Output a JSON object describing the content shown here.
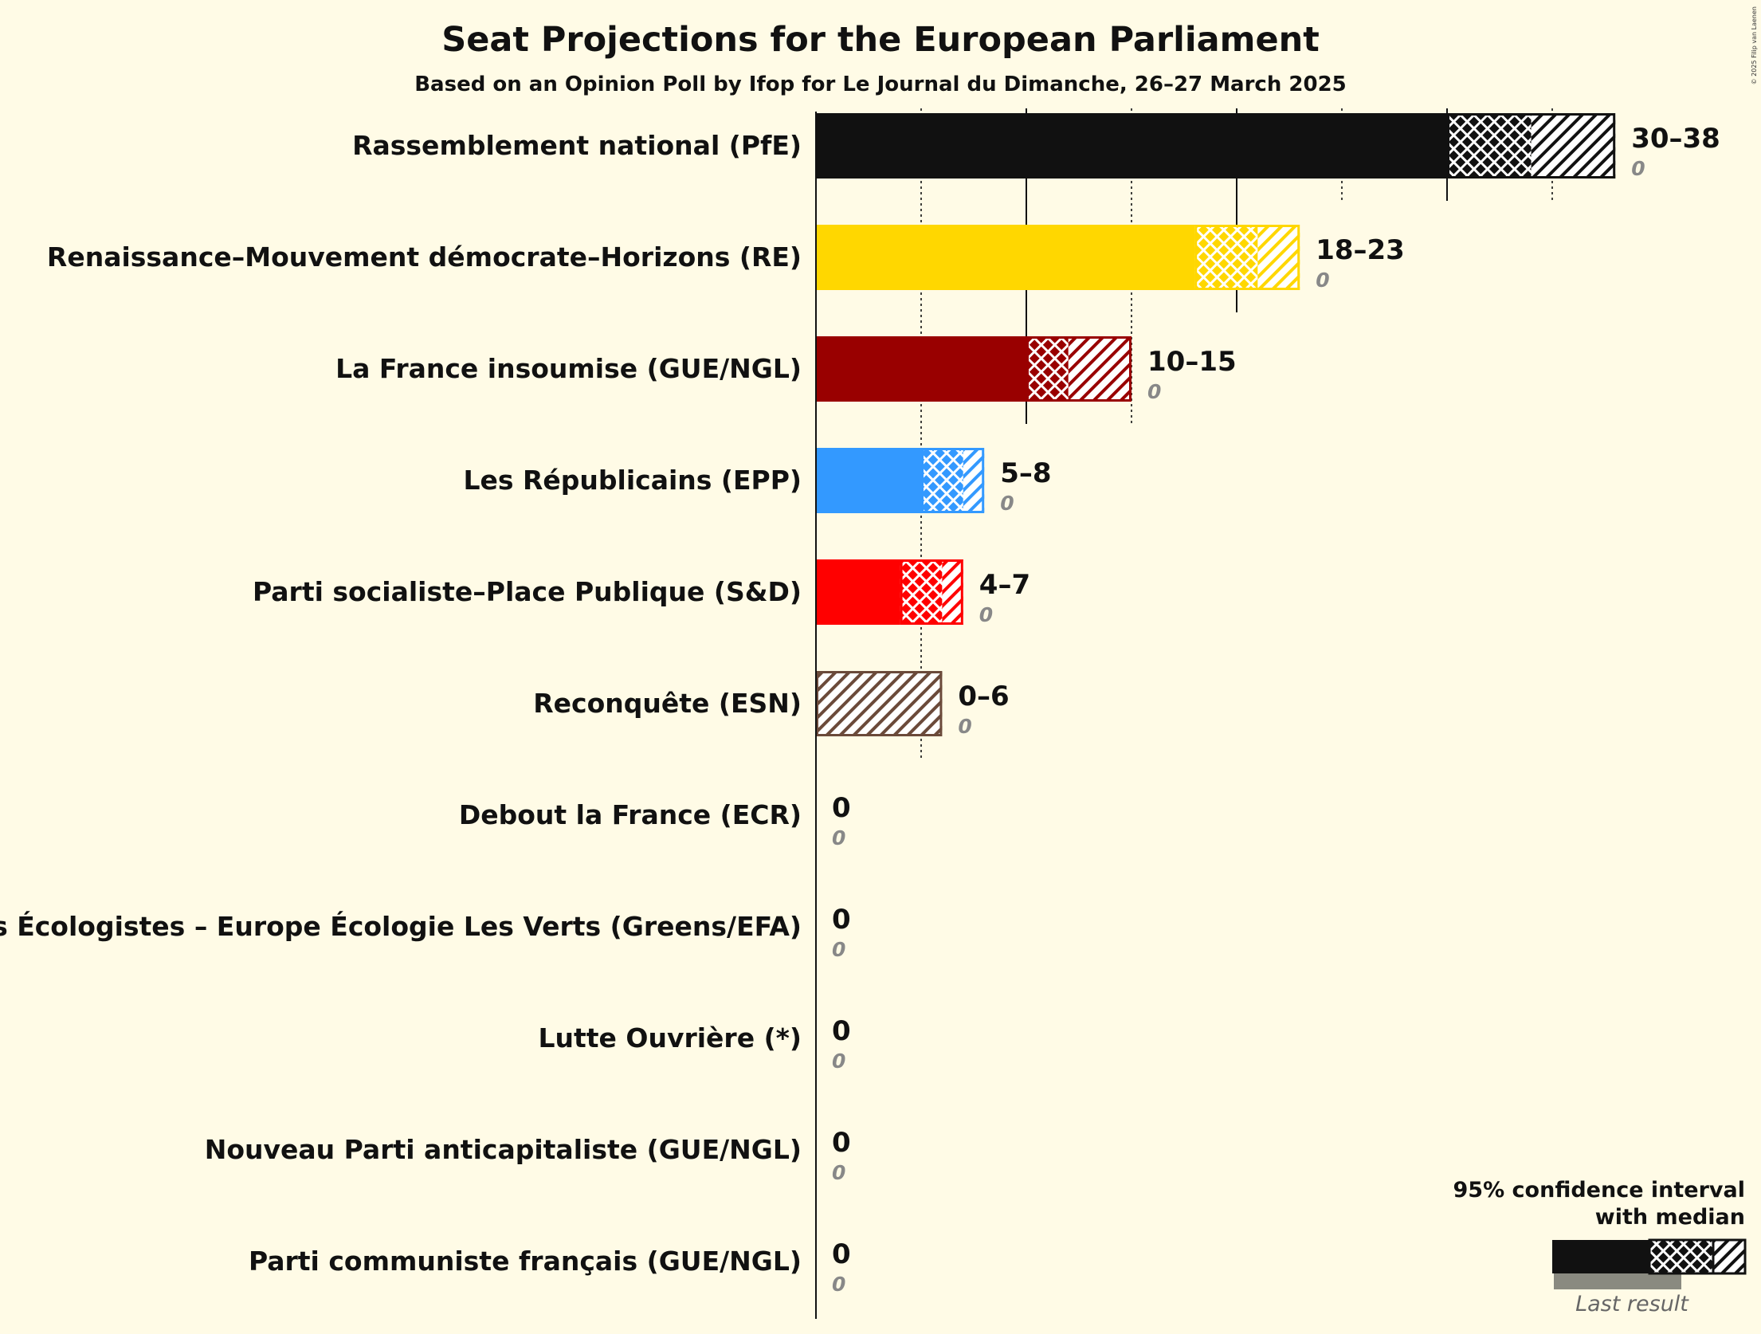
{
  "chart_data": {
    "type": "bar",
    "title": "Seat Projections for the European Parliament",
    "subtitle": "Based on an Opinion Poll by Ifop for Le Journal du Dimanche, 26–27 March 2025",
    "xlim": [
      0,
      38
    ],
    "parties": [
      {
        "name": "Rassemblement national (PfE)",
        "color": "#111111",
        "low": 30,
        "median": 34,
        "high": 38,
        "range_label": "30–38",
        "last_label": "0",
        "last_result": 0
      },
      {
        "name": "Renaissance–Mouvement démocrate–Horizons (RE)",
        "color": "#ffd700",
        "low": 18,
        "median": 21,
        "high": 23,
        "range_label": "18–23",
        "last_label": "0",
        "last_result": 0
      },
      {
        "name": "La France insoumise (GUE/NGL)",
        "color": "#990000",
        "low": 10,
        "median": 12,
        "high": 15,
        "range_label": "10–15",
        "last_label": "0",
        "last_result": 0
      },
      {
        "name": "Les Républicains (EPP)",
        "color": "#3399ff",
        "low": 5,
        "median": 7,
        "high": 8,
        "range_label": "5–8",
        "last_label": "0",
        "last_result": 0
      },
      {
        "name": "Parti socialiste–Place Publique (S&D)",
        "color": "#ff0000",
        "low": 4,
        "median": 6,
        "high": 7,
        "range_label": "4–7",
        "last_label": "0",
        "last_result": 0
      },
      {
        "name": "Reconquête (ESN)",
        "color": "#6b4a3a",
        "low": 0,
        "median": 0,
        "high": 6,
        "range_label": "0–6",
        "last_label": "0",
        "last_result": 0
      },
      {
        "name": "Debout la France (ECR)",
        "color": "#1f3f7a",
        "low": 0,
        "median": 0,
        "high": 0,
        "range_label": "0",
        "last_label": "0",
        "last_result": 0
      },
      {
        "name": "Les Écologistes – Europe Écologie Les Verts (Greens/EFA)",
        "color": "#33aa33",
        "low": 0,
        "median": 0,
        "high": 0,
        "range_label": "0",
        "last_label": "0",
        "last_result": 0
      },
      {
        "name": "Lutte Ouvrière (*)",
        "color": "#aa0000",
        "low": 0,
        "median": 0,
        "high": 0,
        "range_label": "0",
        "last_label": "0",
        "last_result": 0
      },
      {
        "name": "Nouveau Parti anticapitaliste (GUE/NGL)",
        "color": "#cc0000",
        "low": 0,
        "median": 0,
        "high": 0,
        "range_label": "0",
        "last_label": "0",
        "last_result": 0
      },
      {
        "name": "Parti communiste français (GUE/NGL)",
        "color": "#dd0000",
        "low": 0,
        "median": 0,
        "high": 0,
        "range_label": "0",
        "last_label": "0",
        "last_result": 0
      }
    ],
    "legend": {
      "line1": "95% confidence interval",
      "line2": "with median",
      "last_result": "Last result",
      "placement": "bottom-right"
    },
    "copyright": "© 2025 Filip van Laenen"
  }
}
